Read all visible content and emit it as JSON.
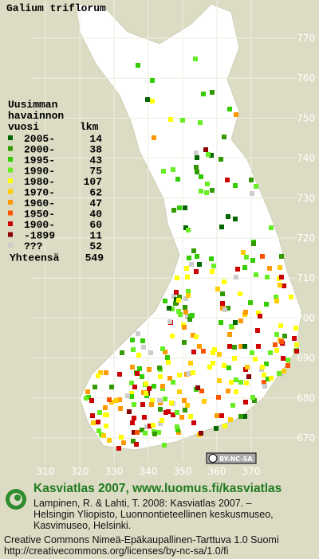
{
  "title": "Galium triflorum",
  "legend": {
    "heading": [
      "Uusimman",
      "havainnon"
    ],
    "col_year": "vuosi",
    "col_count": "lkm",
    "items": [
      {
        "label": "2005-",
        "count": 14,
        "color": "#006600"
      },
      {
        "label": "2000-",
        "count": 38,
        "color": "#339900"
      },
      {
        "label": "1995-",
        "count": 43,
        "color": "#33cc00"
      },
      {
        "label": "1990-",
        "count": 75,
        "color": "#66ee22"
      },
      {
        "label": "1980-",
        "count": 107,
        "color": "#ffff00"
      },
      {
        "label": "1970-",
        "count": 62,
        "color": "#ffcc00"
      },
      {
        "label": "1960-",
        "count": 47,
        "color": "#ff9900"
      },
      {
        "label": "1950-",
        "count": 40,
        "color": "#ff5500"
      },
      {
        "label": "1900-",
        "count": 60,
        "color": "#cc0000"
      },
      {
        "label": "-1899",
        "count": 11,
        "color": "#880000"
      },
      {
        "label": "???",
        "count": 52,
        "color": "#cccccc"
      }
    ],
    "total_label": "Yhteensä",
    "total": 549
  },
  "axes": {
    "x_ticks": [
      310,
      320,
      330,
      340,
      350,
      360,
      370
    ],
    "y_ticks": [
      670,
      680,
      690,
      700,
      710,
      720,
      730,
      740,
      750,
      760,
      770
    ]
  },
  "badge": "BY-NC-SA",
  "footer": {
    "brand": "Kasviatlas 2007, www.luomus.fi/kasviatlas",
    "citation": [
      "Lampinen, R. & Lahti, T. 2008: Kasviatlas 2007. –",
      "Helsingin Yliopisto, Luonnontieteellinen keskusmuseo,",
      "Kasvimuseo, Helsinki."
    ],
    "license": [
      "Creative Commons Nimeä-Epäkaupallinen-Tarttuva 1.0 Suomi",
      "http://creativecommons.org/licenses/by-nc-sa/1.0/fi"
    ]
  }
}
